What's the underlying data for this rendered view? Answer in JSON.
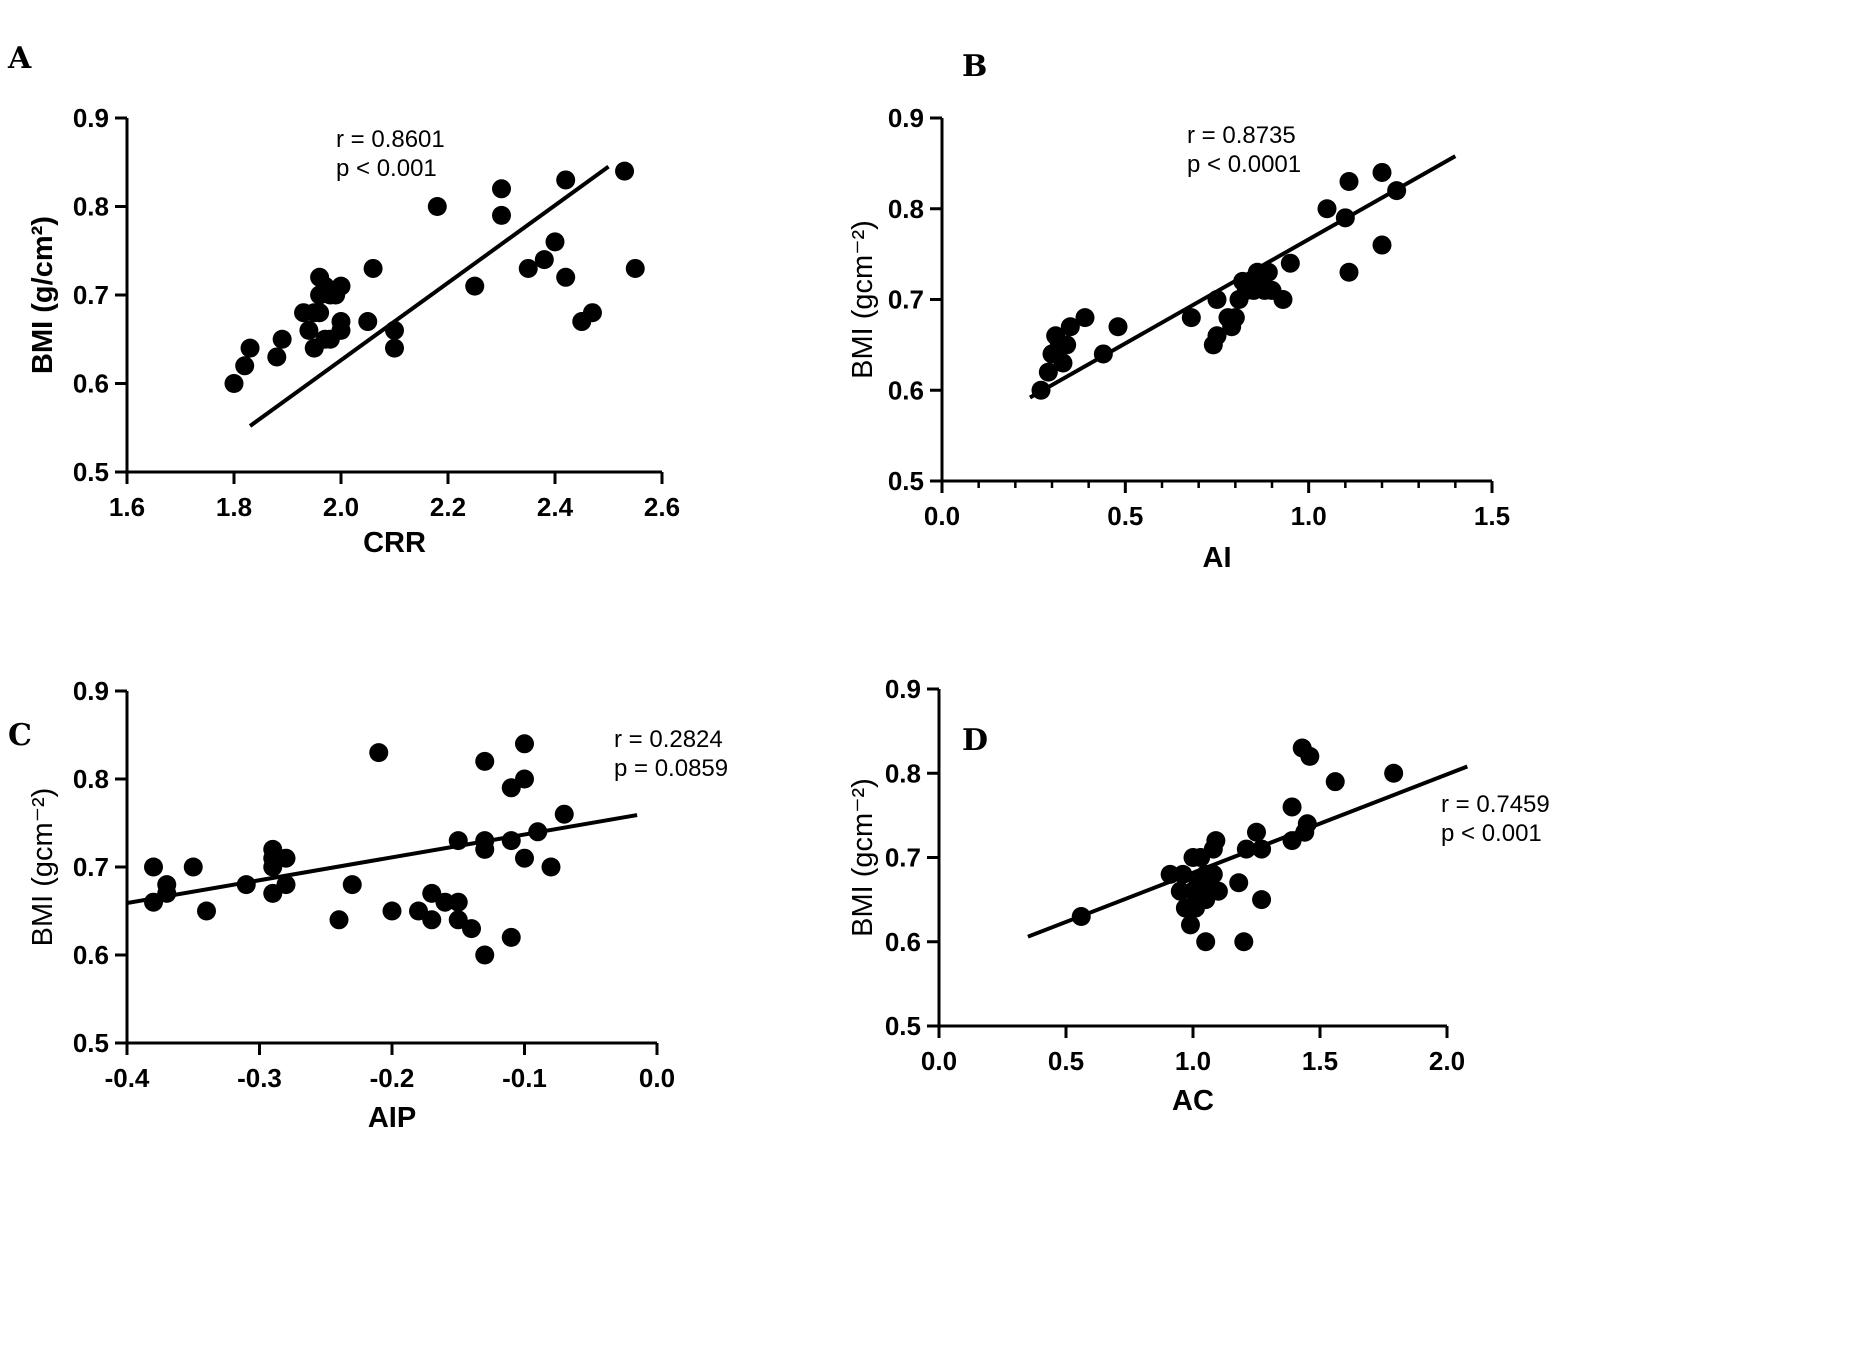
{
  "chart_data": [
    {
      "type": "scatter",
      "panel": "A",
      "xlabel": "CRR",
      "ylabel": "BMI (g/cm²)",
      "xlim": [
        1.6,
        2.6
      ],
      "ylim": [
        0.5,
        0.9
      ],
      "x_ticks": [
        "1.6",
        "1.8",
        "2.0",
        "2.2",
        "2.4",
        "2.6"
      ],
      "y_ticks": [
        "0.5",
        "0.6",
        "0.7",
        "0.8",
        "0.9"
      ],
      "stats": [
        "r = 0.8601",
        "p < 0.001"
      ],
      "points": [
        [
          1.8,
          0.6
        ],
        [
          1.82,
          0.62
        ],
        [
          1.83,
          0.64
        ],
        [
          1.88,
          0.63
        ],
        [
          1.89,
          0.65
        ],
        [
          1.93,
          0.68
        ],
        [
          1.94,
          0.66
        ],
        [
          1.95,
          0.68
        ],
        [
          1.95,
          0.64
        ],
        [
          1.96,
          0.72
        ],
        [
          1.96,
          0.68
        ],
        [
          1.96,
          0.7
        ],
        [
          1.97,
          0.71
        ],
        [
          1.97,
          0.65
        ],
        [
          1.98,
          0.7
        ],
        [
          1.98,
          0.65
        ],
        [
          1.99,
          0.7
        ],
        [
          2.0,
          0.71
        ],
        [
          2.0,
          0.67
        ],
        [
          2.0,
          0.66
        ],
        [
          2.05,
          0.67
        ],
        [
          2.06,
          0.73
        ],
        [
          2.1,
          0.66
        ],
        [
          2.1,
          0.64
        ],
        [
          2.18,
          0.8
        ],
        [
          2.25,
          0.71
        ],
        [
          2.3,
          0.82
        ],
        [
          2.3,
          0.79
        ],
        [
          2.35,
          0.73
        ],
        [
          2.38,
          0.74
        ],
        [
          2.4,
          0.76
        ],
        [
          2.42,
          0.83
        ],
        [
          2.42,
          0.72
        ],
        [
          2.45,
          0.67
        ],
        [
          2.47,
          0.68
        ],
        [
          2.53,
          0.84
        ],
        [
          2.55,
          0.73
        ]
      ],
      "fit_line": [
        [
          1.83,
          0.552
        ],
        [
          2.5,
          0.845
        ]
      ]
    },
    {
      "type": "scatter",
      "panel": "B",
      "xlabel": "AI",
      "ylabel": "BMI (gcm⁻²)",
      "xlim": [
        0.0,
        1.5
      ],
      "ylim": [
        0.5,
        0.9
      ],
      "x_ticks": [
        "0.0",
        "0.5",
        "1.0",
        "1.5"
      ],
      "y_ticks": [
        "0.5",
        "0.6",
        "0.7",
        "0.8",
        "0.9"
      ],
      "stats": [
        "r = 0.8735",
        "p < 0.0001"
      ],
      "points": [
        [
          0.27,
          0.6
        ],
        [
          0.29,
          0.62
        ],
        [
          0.3,
          0.64
        ],
        [
          0.31,
          0.66
        ],
        [
          0.32,
          0.65
        ],
        [
          0.33,
          0.63
        ],
        [
          0.34,
          0.65
        ],
        [
          0.35,
          0.67
        ],
        [
          0.39,
          0.68
        ],
        [
          0.44,
          0.64
        ],
        [
          0.48,
          0.67
        ],
        [
          0.68,
          0.68
        ],
        [
          0.74,
          0.65
        ],
        [
          0.75,
          0.66
        ],
        [
          0.75,
          0.7
        ],
        [
          0.78,
          0.68
        ],
        [
          0.79,
          0.67
        ],
        [
          0.8,
          0.68
        ],
        [
          0.81,
          0.7
        ],
        [
          0.82,
          0.72
        ],
        [
          0.83,
          0.71
        ],
        [
          0.85,
          0.71
        ],
        [
          0.86,
          0.73
        ],
        [
          0.87,
          0.72
        ],
        [
          0.88,
          0.71
        ],
        [
          0.89,
          0.73
        ],
        [
          0.9,
          0.71
        ],
        [
          0.93,
          0.7
        ],
        [
          0.95,
          0.74
        ],
        [
          1.05,
          0.8
        ],
        [
          1.1,
          0.79
        ],
        [
          1.11,
          0.83
        ],
        [
          1.11,
          0.73
        ],
        [
          1.2,
          0.84
        ],
        [
          1.2,
          0.76
        ],
        [
          1.24,
          0.82
        ]
      ],
      "fit_line": [
        [
          0.24,
          0.592
        ],
        [
          1.4,
          0.858
        ]
      ]
    },
    {
      "type": "scatter",
      "panel": "C",
      "xlabel": "AIP",
      "ylabel": "BMI (gcm⁻²)",
      "xlim": [
        -0.4,
        0.0
      ],
      "ylim": [
        0.5,
        0.9
      ],
      "x_ticks": [
        "-0.4",
        "-0.3",
        "-0.2",
        "-0.1",
        "0.0"
      ],
      "y_ticks": [
        "0.5",
        "0.6",
        "0.7",
        "0.8",
        "0.9"
      ],
      "stats": [
        "r = 0.2824",
        "p = 0.0859"
      ],
      "points": [
        [
          -0.38,
          0.7
        ],
        [
          -0.38,
          0.66
        ],
        [
          -0.37,
          0.68
        ],
        [
          -0.37,
          0.67
        ],
        [
          -0.35,
          0.7
        ],
        [
          -0.34,
          0.65
        ],
        [
          -0.31,
          0.68
        ],
        [
          -0.29,
          0.72
        ],
        [
          -0.29,
          0.71
        ],
        [
          -0.29,
          0.7
        ],
        [
          -0.29,
          0.67
        ],
        [
          -0.28,
          0.71
        ],
        [
          -0.28,
          0.68
        ],
        [
          -0.24,
          0.64
        ],
        [
          -0.23,
          0.68
        ],
        [
          -0.21,
          0.83
        ],
        [
          -0.2,
          0.65
        ],
        [
          -0.18,
          0.65
        ],
        [
          -0.17,
          0.67
        ],
        [
          -0.17,
          0.64
        ],
        [
          -0.16,
          0.66
        ],
        [
          -0.15,
          0.73
        ],
        [
          -0.15,
          0.66
        ],
        [
          -0.15,
          0.64
        ],
        [
          -0.14,
          0.63
        ],
        [
          -0.13,
          0.82
        ],
        [
          -0.13,
          0.73
        ],
        [
          -0.13,
          0.72
        ],
        [
          -0.13,
          0.6
        ],
        [
          -0.11,
          0.79
        ],
        [
          -0.11,
          0.73
        ],
        [
          -0.11,
          0.62
        ],
        [
          -0.1,
          0.84
        ],
        [
          -0.1,
          0.8
        ],
        [
          -0.1,
          0.71
        ],
        [
          -0.09,
          0.74
        ],
        [
          -0.08,
          0.7
        ],
        [
          -0.07,
          0.76
        ]
      ],
      "fit_line": [
        [
          -0.4,
          0.659
        ],
        [
          -0.015,
          0.759
        ]
      ]
    },
    {
      "type": "scatter",
      "panel": "D",
      "xlabel": "AC",
      "ylabel": "BMI (gcm⁻²)",
      "xlim": [
        0.0,
        2.0
      ],
      "ylim": [
        0.5,
        0.9
      ],
      "x_ticks": [
        "0.0",
        "0.5",
        "1.0",
        "1.5",
        "2.0"
      ],
      "y_ticks": [
        "0.5",
        "0.6",
        "0.7",
        "0.8",
        "0.9"
      ],
      "stats": [
        "r = 0.7459",
        "p < 0.001"
      ],
      "points": [
        [
          0.56,
          0.63
        ],
        [
          0.91,
          0.68
        ],
        [
          0.95,
          0.66
        ],
        [
          0.96,
          0.68
        ],
        [
          0.97,
          0.64
        ],
        [
          0.99,
          0.64
        ],
        [
          0.99,
          0.62
        ],
        [
          1.0,
          0.7
        ],
        [
          1.0,
          0.66
        ],
        [
          1.01,
          0.64
        ],
        [
          1.02,
          0.67
        ],
        [
          1.03,
          0.7
        ],
        [
          1.04,
          0.66
        ],
        [
          1.05,
          0.68
        ],
        [
          1.05,
          0.65
        ],
        [
          1.05,
          0.6
        ],
        [
          1.06,
          0.67
        ],
        [
          1.07,
          0.68
        ],
        [
          1.08,
          0.71
        ],
        [
          1.08,
          0.68
        ],
        [
          1.09,
          0.72
        ],
        [
          1.1,
          0.66
        ],
        [
          1.18,
          0.67
        ],
        [
          1.2,
          0.6
        ],
        [
          1.21,
          0.71
        ],
        [
          1.25,
          0.73
        ],
        [
          1.27,
          0.71
        ],
        [
          1.27,
          0.65
        ],
        [
          1.39,
          0.76
        ],
        [
          1.39,
          0.72
        ],
        [
          1.43,
          0.83
        ],
        [
          1.44,
          0.73
        ],
        [
          1.45,
          0.74
        ],
        [
          1.46,
          0.82
        ],
        [
          1.56,
          0.79
        ],
        [
          1.79,
          0.8
        ]
      ],
      "fit_line": [
        [
          0.35,
          0.606
        ],
        [
          2.08,
          0.808
        ]
      ]
    }
  ]
}
